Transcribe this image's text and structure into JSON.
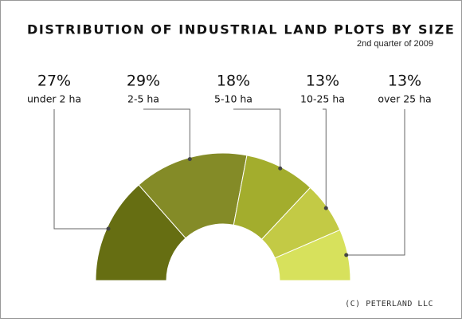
{
  "chart_data": {
    "type": "semi-donut",
    "title": "DISTRIBUTION OF INDUSTRIAL LAND PLOTS BY SIZE",
    "subtitle": "2nd quarter of 2009",
    "footer": "(C) PETERLAND LLC",
    "categories": [
      "under 2 ha",
      "2-5 ha",
      "5-10 ha",
      "10-25 ha",
      "over 25 ha"
    ],
    "values": [
      27,
      29,
      18,
      13,
      13
    ],
    "value_labels": [
      "27%",
      "29%",
      "18%",
      "13%",
      "13%"
    ],
    "colors": [
      "#666e12",
      "#848b27",
      "#a3ad2d",
      "#c3ca45",
      "#d7e15c"
    ]
  }
}
